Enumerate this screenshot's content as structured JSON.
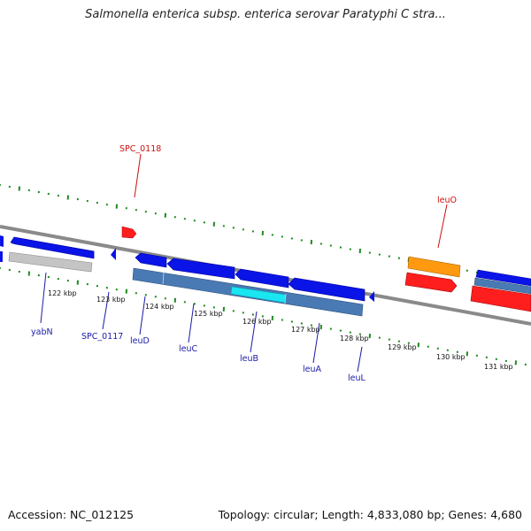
{
  "title": "Salmonella enterica subsp. enterica serovar Paratyphi C stra...",
  "footer": {
    "accession": "Accession: NC_012125",
    "summary": "Topology: circular; Length: 4,833,080 bp; Genes: 4,680"
  },
  "colors": {
    "forward_cds": "#0a14e6",
    "operon": "#4a7ab3",
    "highlight": "#19e6f0",
    "rna_red": "#ff1e1e",
    "orange": "#ff9a10",
    "grey": "#bcbcbc",
    "backbone": "#8a8a8a",
    "ticks": "#1f8a1f",
    "label_blue": "#1a1aa8",
    "label_red": "#cc1010"
  },
  "scale_labels": [
    "122 kbp",
    "123 kbp",
    "124 kbp",
    "125 kbp",
    "126 kbp",
    "127 kbp",
    "128 kbp",
    "129 kbp",
    "130 kbp",
    "131 kbp"
  ],
  "gene_labels": [
    "yabN",
    "SPC_0117",
    "leuD",
    "leuC",
    "leuB",
    "leuA",
    "leuL",
    "SPC_0118",
    "leuO"
  ]
}
